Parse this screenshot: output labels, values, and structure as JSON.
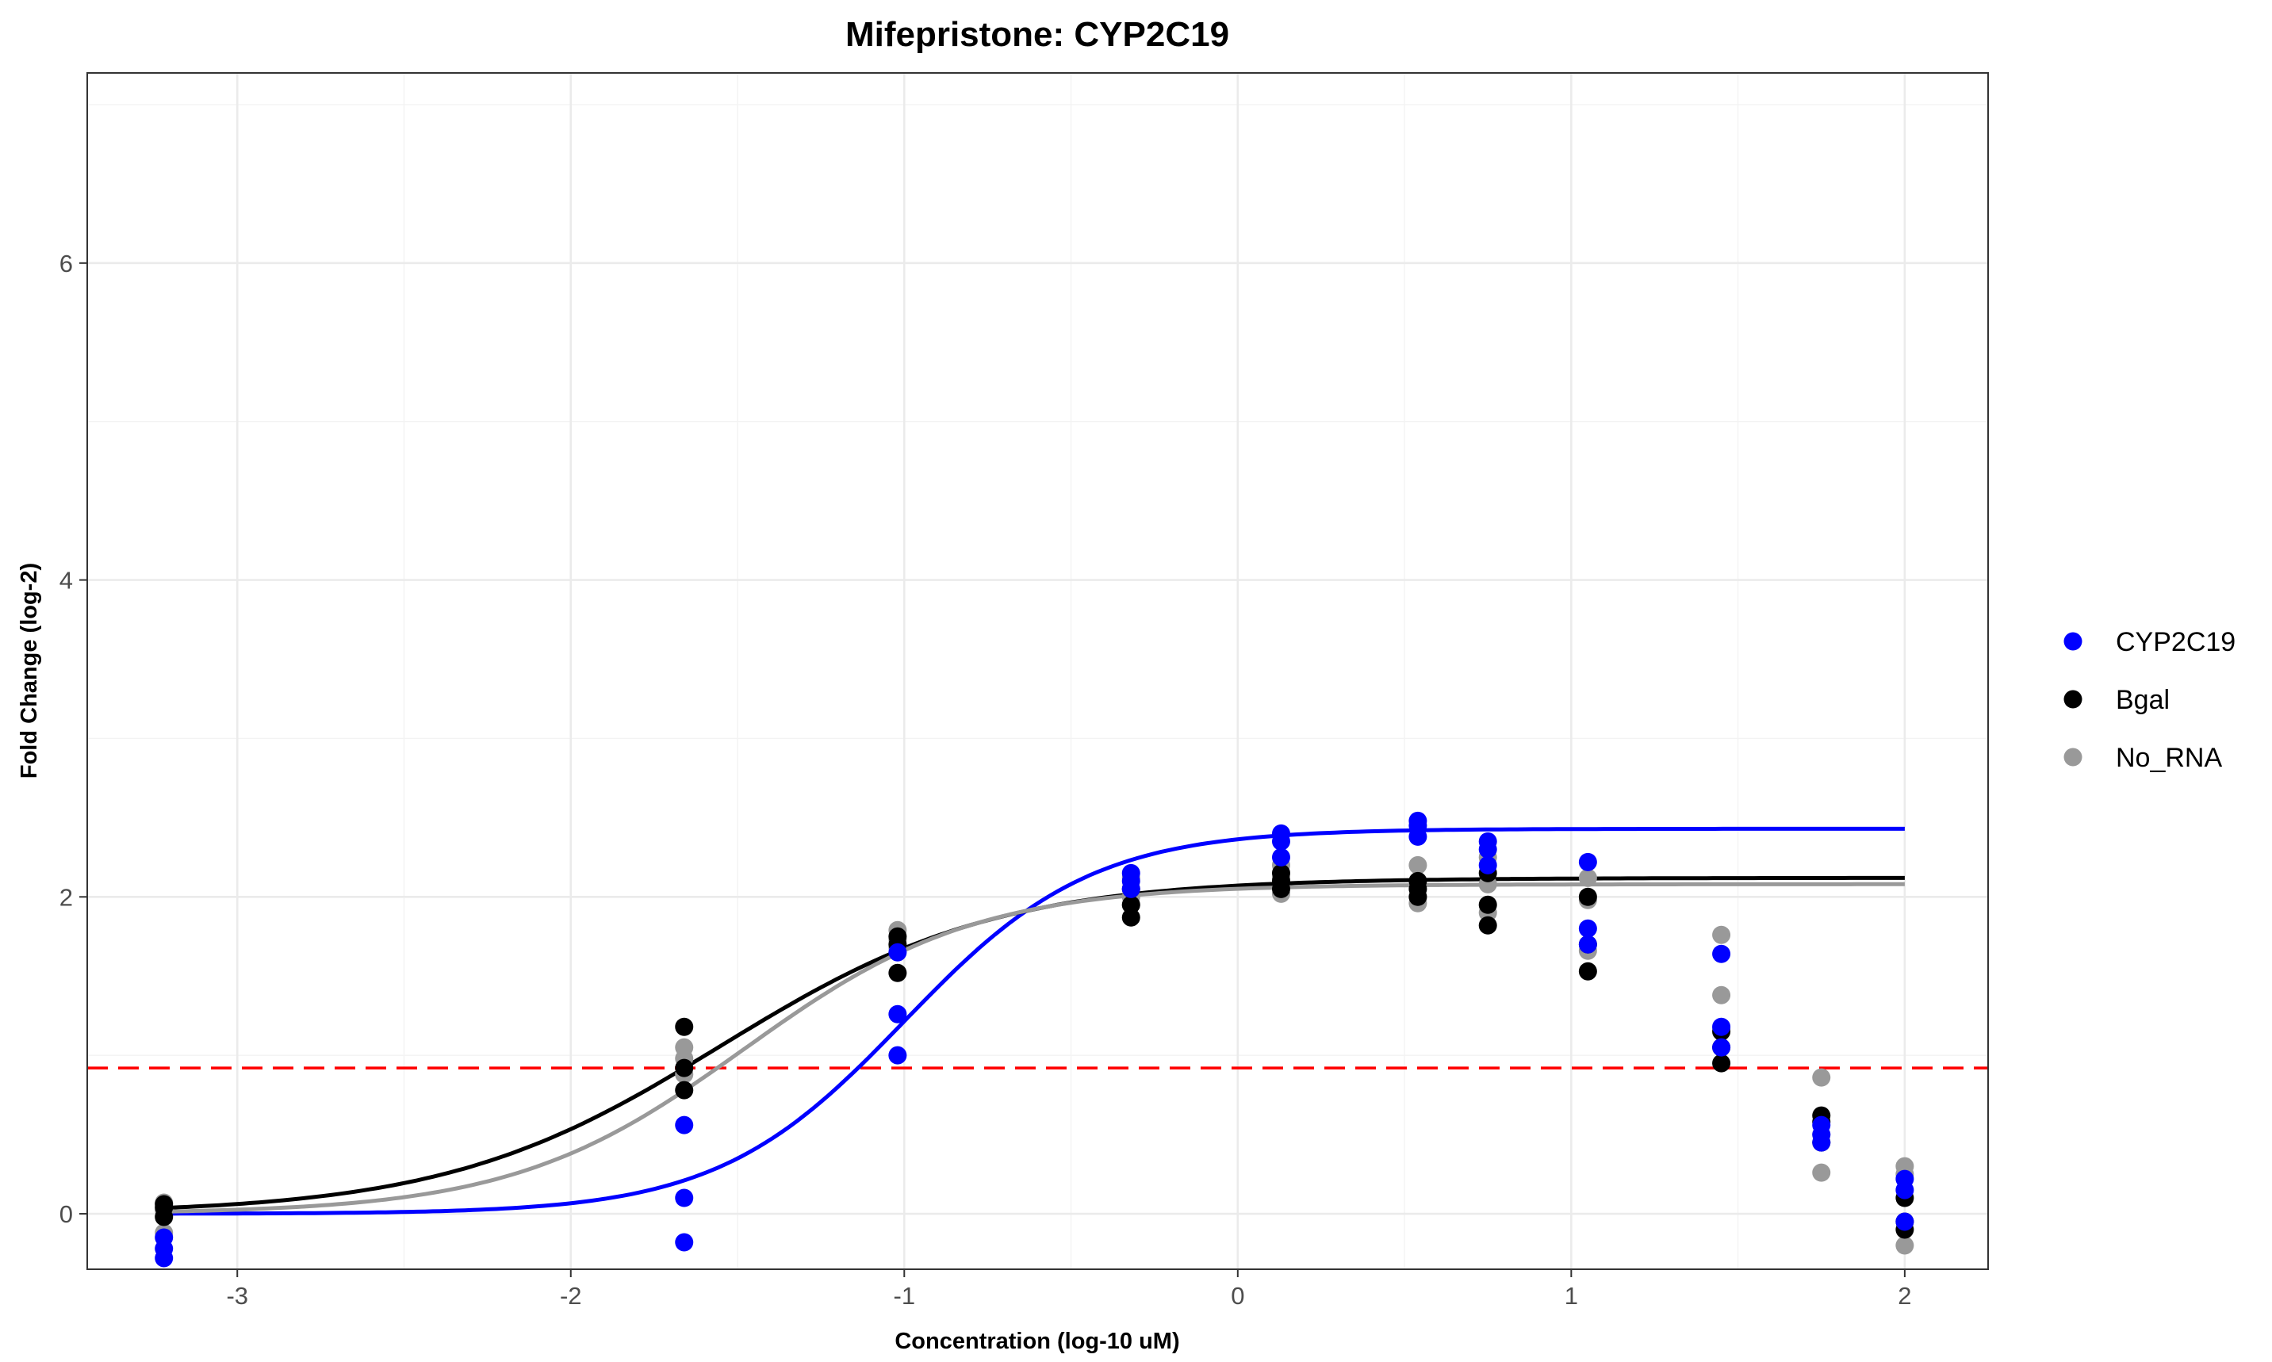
{
  "chart_data": {
    "type": "scatter",
    "title": "Mifepristone: CYP2C19",
    "xlabel": "Concentration (log-10 uM)",
    "ylabel": "Fold Change (log-2)",
    "xlim": [
      -3.45,
      2.25
    ],
    "ylim": [
      -0.35,
      7.2
    ],
    "x_ticks": [
      -3,
      -2,
      -1,
      0,
      1,
      2
    ],
    "x_tick_labels": [
      "-3",
      "-2",
      "-1",
      "0",
      "1",
      "2"
    ],
    "y_ticks": [
      0,
      2,
      4,
      6
    ],
    "y_tick_labels": [
      "0",
      "2",
      "4",
      "6"
    ],
    "grid": true,
    "legend_position": "right",
    "threshold": {
      "y": 0.92,
      "color": "#ff0000",
      "style": "dashed"
    },
    "series": [
      {
        "name": "CYP2C19",
        "color": "#0000ff",
        "points": [
          [
            -3.22,
            -0.28
          ],
          [
            -3.22,
            -0.22
          ],
          [
            -3.22,
            -0.15
          ],
          [
            -1.66,
            0.56
          ],
          [
            -1.66,
            0.1
          ],
          [
            -1.66,
            -0.18
          ],
          [
            -1.02,
            1.26
          ],
          [
            -1.02,
            1.0
          ],
          [
            -1.02,
            1.65
          ],
          [
            -0.32,
            2.15
          ],
          [
            -0.32,
            2.1
          ],
          [
            -0.32,
            2.05
          ],
          [
            0.13,
            2.4
          ],
          [
            0.13,
            2.35
          ],
          [
            0.13,
            2.25
          ],
          [
            0.54,
            2.48
          ],
          [
            0.54,
            2.45
          ],
          [
            0.54,
            2.38
          ],
          [
            0.75,
            2.35
          ],
          [
            0.75,
            2.3
          ],
          [
            0.75,
            2.2
          ],
          [
            1.05,
            2.22
          ],
          [
            1.05,
            1.8
          ],
          [
            1.05,
            1.7
          ],
          [
            1.45,
            1.64
          ],
          [
            1.45,
            1.18
          ],
          [
            1.45,
            1.05
          ],
          [
            1.75,
            0.56
          ],
          [
            1.75,
            0.5
          ],
          [
            1.75,
            0.45
          ],
          [
            2.0,
            -0.05
          ],
          [
            2.0,
            0.15
          ],
          [
            2.0,
            0.22
          ]
        ],
        "curve": {
          "bottom": 0.0,
          "top": 2.43,
          "ec50_log": -1.0,
          "hill": 1.55
        }
      },
      {
        "name": "Bgal",
        "color": "#000000",
        "points": [
          [
            -3.22,
            0.06
          ],
          [
            -3.22,
            -0.02
          ],
          [
            -3.22,
            0.04
          ],
          [
            -1.66,
            1.18
          ],
          [
            -1.66,
            0.78
          ],
          [
            -1.66,
            0.92
          ],
          [
            -1.02,
            1.52
          ],
          [
            -1.02,
            1.7
          ],
          [
            -1.02,
            1.75
          ],
          [
            -0.32,
            1.87
          ],
          [
            -0.32,
            1.95
          ],
          [
            -0.32,
            2.05
          ],
          [
            0.13,
            2.05
          ],
          [
            0.13,
            2.1
          ],
          [
            0.13,
            2.15
          ],
          [
            0.54,
            2.1
          ],
          [
            0.54,
            2.05
          ],
          [
            0.54,
            2.0
          ],
          [
            0.75,
            1.82
          ],
          [
            0.75,
            1.95
          ],
          [
            0.75,
            2.15
          ],
          [
            1.05,
            1.53
          ],
          [
            1.05,
            1.7
          ],
          [
            1.05,
            2.0
          ],
          [
            1.45,
            0.95
          ],
          [
            1.45,
            1.05
          ],
          [
            1.45,
            1.15
          ],
          [
            1.75,
            0.62
          ],
          [
            1.75,
            0.58
          ],
          [
            1.75,
            0.45
          ],
          [
            2.0,
            -0.1
          ],
          [
            2.0,
            0.1
          ],
          [
            2.0,
            -0.05
          ]
        ],
        "curve": {
          "bottom": 0.0,
          "top": 2.12,
          "ec50_log": -1.55,
          "hill": 1.05
        }
      },
      {
        "name": "No_RNA",
        "color": "#999999",
        "points": [
          [
            -3.22,
            0.07
          ],
          [
            -3.22,
            -0.12
          ],
          [
            -3.22,
            0.02
          ],
          [
            -1.66,
            1.05
          ],
          [
            -1.66,
            0.88
          ],
          [
            -1.66,
            0.98
          ],
          [
            -1.02,
            1.79
          ],
          [
            -1.02,
            1.73
          ],
          [
            -1.02,
            1.68
          ],
          [
            -0.32,
            2.12
          ],
          [
            -0.32,
            2.0
          ],
          [
            -0.32,
            1.95
          ],
          [
            0.13,
            2.2
          ],
          [
            0.13,
            2.02
          ],
          [
            0.13,
            2.12
          ],
          [
            0.54,
            2.2
          ],
          [
            0.54,
            2.0
          ],
          [
            0.54,
            1.96
          ],
          [
            0.75,
            2.25
          ],
          [
            0.75,
            2.08
          ],
          [
            0.75,
            1.9
          ],
          [
            1.05,
            2.12
          ],
          [
            1.05,
            1.98
          ],
          [
            1.05,
            1.66
          ],
          [
            1.45,
            1.76
          ],
          [
            1.45,
            1.38
          ],
          [
            1.45,
            1.17
          ],
          [
            1.75,
            0.86
          ],
          [
            1.75,
            0.26
          ],
          [
            1.75,
            0.5
          ],
          [
            2.0,
            0.3
          ],
          [
            2.0,
            0.25
          ],
          [
            2.0,
            -0.2
          ]
        ],
        "curve": {
          "bottom": 0.0,
          "top": 2.08,
          "ec50_log": -1.48,
          "hill": 1.25
        }
      }
    ]
  }
}
